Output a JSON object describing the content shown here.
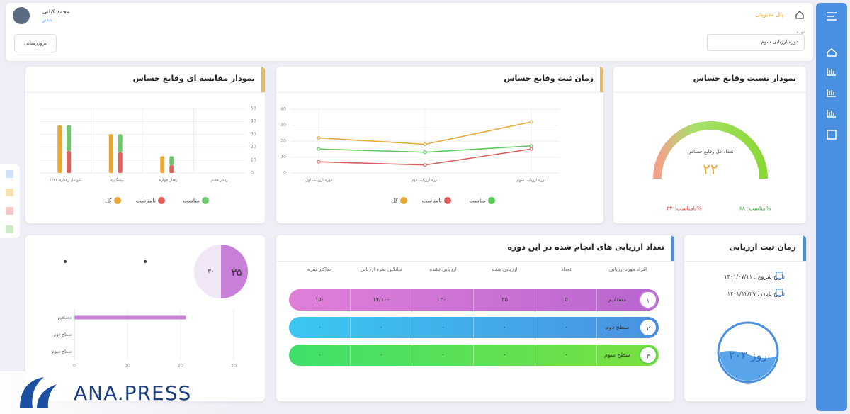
{
  "header": {
    "user_name": "محمد کیانی",
    "user_role": "مدیر",
    "refresh": "بروزرسانی",
    "breadcrumb": "پنل مدیریتی",
    "period_label": "دوره",
    "period": "دوره ارزیابی سوم"
  },
  "gauge": {
    "title": "نمودار نسبت وقایع حساس",
    "center_label": "تعداد کل وقایع حساس",
    "total": "۲۲",
    "good": "مناسب: ۶۸%",
    "bad": "نامناسب: ۳۲%"
  },
  "summary": {
    "big": "۳۵",
    "small": "۳۰"
  },
  "table": {
    "title": "تعداد ارزیابی های انجام شده در این دوره",
    "headers": [
      "افراد مورد ارزیابی",
      "تعداد",
      "ارزیابی شده",
      "ارزیابی نشده",
      "میانگین نمره ارزیابی",
      "حداکثر نمره"
    ],
    "rows": [
      [
        "۱",
        "مستقیم",
        "۵",
        "۳۵",
        "۳۰",
        "۱۴/۱۰۰",
        "۱۵۰"
      ],
      [
        "۲",
        "سطح دوم",
        "۰",
        "۰",
        "۰",
        "۰",
        "۰"
      ],
      [
        "۳",
        "سطح سوم",
        "۰",
        "۰",
        "۰",
        "۰",
        "۰"
      ]
    ]
  },
  "dates": {
    "title": "زمان ثبت ارزیابی",
    "start": "تاریخ شروع : ۱۴۰۱/۰۷/۱۱",
    "end": "تاریخ پایان : ۱۴۰۱/۱۲/۲۹",
    "days": "۲۰۳ روز"
  },
  "watermark": "ANA.PRESS",
  "chart_data": [
    {
      "type": "bar",
      "title": "نمودار مقایسه ای وقایع حساس",
      "categories": [
        "عوامل رفتاری (۷۷)",
        "پیشگیری",
        "رفتار چهارم",
        "رفتار هفتم"
      ],
      "series": [
        {
          "name": "مناسب",
          "color": "#6cc86a",
          "values": [
            20,
            14,
            7,
            0
          ]
        },
        {
          "name": "نامناسب",
          "color": "#e0605e",
          "values": [
            17,
            16,
            6,
            0
          ]
        },
        {
          "name": "کل",
          "color": "#e8a838",
          "values": [
            37,
            30,
            13,
            0
          ]
        }
      ],
      "ylim": [
        0,
        50
      ],
      "yticks": [
        0,
        10,
        20,
        30,
        40,
        50
      ],
      "grid": true
    },
    {
      "type": "line",
      "title": "زمان ثبت وقایع حساس",
      "categories": [
        "دوره ارزیابی اول",
        "دوره ارزیابی دوم",
        "دوره ارزیابی سوم"
      ],
      "series": [
        {
          "name": "مناسب",
          "color": "#5cc85a",
          "values": [
            15,
            13,
            17
          ]
        },
        {
          "name": "نامناسب",
          "color": "#d85a5a",
          "values": [
            7,
            5,
            15
          ]
        },
        {
          "name": "کل",
          "color": "#e8a838",
          "values": [
            22,
            18,
            32
          ]
        }
      ],
      "ylim": [
        0,
        40
      ],
      "yticks": [
        0,
        10,
        20,
        30,
        40
      ],
      "grid": true
    },
    {
      "type": "hbar",
      "categories": [
        "مستقیم",
        "سطح دوم",
        "سطح سوم"
      ],
      "values": [
        21,
        0,
        0
      ],
      "color": "#c77fd8",
      "xlim": [
        0,
        30
      ],
      "xticks": [
        0,
        10,
        20,
        30
      ],
      "grid": true
    }
  ]
}
